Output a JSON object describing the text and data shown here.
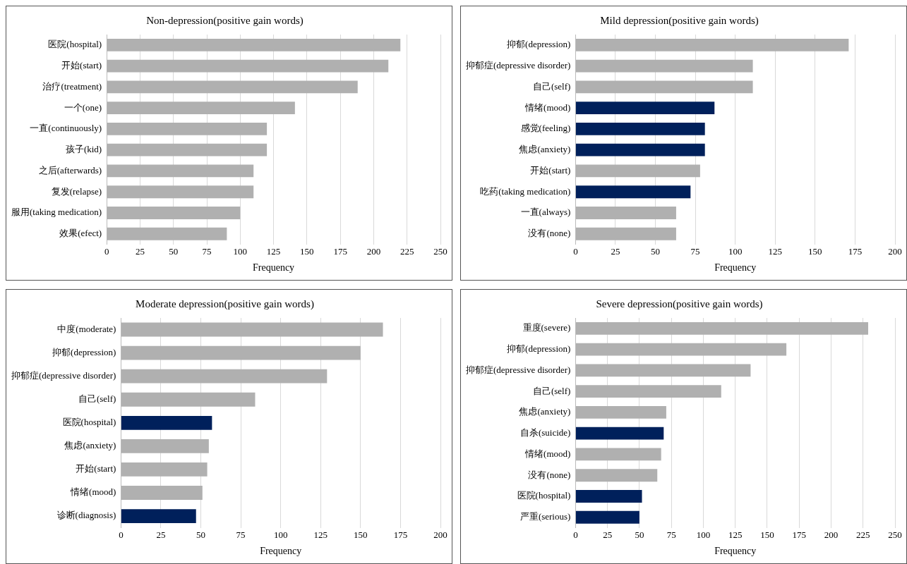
{
  "chart_data": [
    {
      "type": "bar",
      "orientation": "horizontal",
      "title": "Non-depression(positive gain words)",
      "xlabel": "Frequency",
      "categories": [
        "医院(hospital)",
        "开始(start)",
        "治疗(treatment)",
        "一个(one)",
        "一直(continuously)",
        "孩子(kid)",
        "之后(afterwards)",
        "复发(relapse)",
        "服用(taking medication)",
        "效果(efect)"
      ],
      "values": [
        220,
        211,
        188,
        141,
        120,
        120,
        110,
        110,
        100,
        90
      ],
      "colors": [
        "#b0b0b0",
        "#b0b0b0",
        "#b0b0b0",
        "#b0b0b0",
        "#b0b0b0",
        "#b0b0b0",
        "#b0b0b0",
        "#b0b0b0",
        "#b0b0b0",
        "#b0b0b0"
      ],
      "xlim": [
        0,
        250
      ],
      "xticks": [
        0,
        25,
        50,
        75,
        100,
        125,
        150,
        175,
        200,
        225,
        250
      ],
      "grid": "x"
    },
    {
      "type": "bar",
      "orientation": "horizontal",
      "title": "Mild depression(positive gain words)",
      "xlabel": "Frequency",
      "categories": [
        "抑郁(depression)",
        "抑郁症(depressive disorder)",
        "自己(self)",
        "情绪(mood)",
        "感觉(feeling)",
        "焦虑(anxiety)",
        "开始(start)",
        "吃药(taking medication)",
        "一直(always)",
        "没有(none)"
      ],
      "values": [
        171,
        111,
        111,
        87,
        81,
        81,
        78,
        72,
        63,
        63
      ],
      "colors": [
        "#b0b0b0",
        "#b0b0b0",
        "#b0b0b0",
        "#00205b",
        "#00205b",
        "#00205b",
        "#b0b0b0",
        "#00205b",
        "#b0b0b0",
        "#b0b0b0"
      ],
      "xlim": [
        0,
        200
      ],
      "xticks": [
        0,
        25,
        50,
        75,
        100,
        125,
        150,
        175,
        200
      ],
      "grid": "x"
    },
    {
      "type": "bar",
      "orientation": "horizontal",
      "title": "Moderate depression(positive gain words)",
      "xlabel": "Frequency",
      "categories": [
        "中度(moderate)",
        "抑郁(depression)",
        "抑郁症(depressive disorder)",
        "自己(self)",
        "医院(hospital)",
        "焦虑(anxiety)",
        "开始(start)",
        "情绪(mood)",
        "诊断(diagnosis)"
      ],
      "values": [
        164,
        150,
        129,
        84,
        57,
        55,
        54,
        51,
        47
      ],
      "colors": [
        "#b0b0b0",
        "#b0b0b0",
        "#b0b0b0",
        "#b0b0b0",
        "#00205b",
        "#b0b0b0",
        "#b0b0b0",
        "#b0b0b0",
        "#00205b"
      ],
      "xlim": [
        0,
        200
      ],
      "xticks": [
        0,
        25,
        50,
        75,
        100,
        125,
        150,
        175,
        200
      ],
      "grid": "x"
    },
    {
      "type": "bar",
      "orientation": "horizontal",
      "title": "Severe depression(positive gain words)",
      "xlabel": "Frequency",
      "categories": [
        "重度(severe)",
        "抑郁(depression)",
        "抑郁症(depressive disorder)",
        "自己(self)",
        "焦虑(anxiety)",
        "自杀(suicide)",
        "情绪(mood)",
        "没有(none)",
        "医院(hospital)",
        "严重(serious)"
      ],
      "values": [
        229,
        165,
        137,
        114,
        71,
        69,
        67,
        64,
        52,
        50
      ],
      "colors": [
        "#b0b0b0",
        "#b0b0b0",
        "#b0b0b0",
        "#b0b0b0",
        "#b0b0b0",
        "#00205b",
        "#b0b0b0",
        "#b0b0b0",
        "#00205b",
        "#00205b"
      ],
      "xlim": [
        0,
        250
      ],
      "xticks": [
        0,
        25,
        50,
        75,
        100,
        125,
        150,
        175,
        200,
        225,
        250
      ],
      "grid": "x"
    }
  ]
}
